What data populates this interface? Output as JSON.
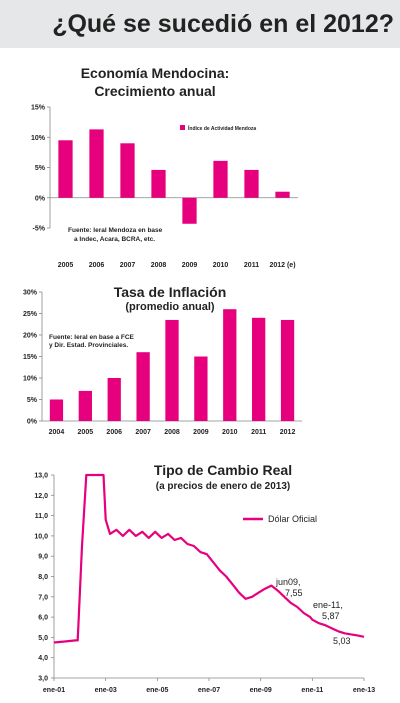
{
  "page": {
    "title": "¿Qué se sucedió en el 2012?",
    "accent": "#e6007e"
  },
  "chart_data": [
    {
      "type": "bar",
      "title": "Economía Mendocina:",
      "subtitle": "Crecimiento anual",
      "categories": [
        "2005",
        "2006",
        "2007",
        "2008",
        "2009",
        "2010",
        "2011",
        "2012 (e)"
      ],
      "series": [
        {
          "name": "Índice de Actividad Mendoza",
          "values": [
            9.5,
            11.3,
            9.0,
            4.6,
            -4.3,
            6.1,
            4.6,
            1.0
          ]
        }
      ],
      "ylim": [
        -5,
        15
      ],
      "y_ticks": [
        "15%",
        "10%",
        "5%",
        "0%",
        "-5%"
      ],
      "source_note": [
        "Fuente: Ieral Mendoza en base",
        "a Indec, Acara, BCRA, etc."
      ],
      "legend_position": "top-right",
      "grid": false
    },
    {
      "type": "bar",
      "title": "Tasa de Inflación",
      "subtitle": "(promedio anual)",
      "categories": [
        "2004",
        "2005",
        "2006",
        "2007",
        "2008",
        "2009",
        "2010",
        "2011",
        "2012"
      ],
      "series": [
        {
          "values": [
            5.0,
            7.0,
            10.0,
            16.0,
            23.5,
            15.0,
            26.0,
            24.0,
            23.5
          ]
        }
      ],
      "ylim": [
        0,
        30
      ],
      "y_ticks": [
        "30%",
        "25%",
        "20%",
        "15%",
        "10%",
        "5%",
        "0%"
      ],
      "source_note": [
        "Fuente: Ieral en base a FCE",
        "y Dir. Estad. Provinciales."
      ],
      "grid": false
    },
    {
      "type": "line",
      "title": "Tipo de Cambio Real",
      "subtitle": "(a precios de enero de 2013)",
      "x_ticks": [
        "ene-01",
        "ene-03",
        "ene-05",
        "ene-07",
        "ene-09",
        "ene-11",
        "ene-13"
      ],
      "y_ticks": [
        "13,0",
        "12,0",
        "11,0",
        "10,0",
        "9,0",
        "8,0",
        "7,0",
        "6,0",
        "5,0",
        "4,0",
        "3,0"
      ],
      "xlim": [
        "2001-01",
        "2013-01"
      ],
      "ylim": [
        3,
        13
      ],
      "legend_position": "top-right",
      "series": [
        {
          "name": "Dólar Oficial",
          "x": [
            "2001-01",
            "2001-06",
            "2001-11",
            "2001-12",
            "2002-02",
            "2002-04",
            "2002-06",
            "2002-09",
            "2002-12",
            "2003-01",
            "2003-03",
            "2003-06",
            "2003-09",
            "2003-12",
            "2004-03",
            "2004-06",
            "2004-09",
            "2004-12",
            "2005-03",
            "2005-06",
            "2005-09",
            "2005-12",
            "2006-03",
            "2006-06",
            "2006-09",
            "2006-12",
            "2007-03",
            "2007-06",
            "2007-09",
            "2007-12",
            "2008-03",
            "2008-06",
            "2008-09",
            "2008-12",
            "2009-03",
            "2009-06",
            "2009-09",
            "2009-12",
            "2010-03",
            "2010-06",
            "2010-09",
            "2010-12",
            "2011-01",
            "2011-04",
            "2011-07",
            "2011-10",
            "2012-01",
            "2012-04",
            "2012-07",
            "2012-10",
            "2013-01"
          ],
          "values": [
            4.75,
            4.8,
            4.85,
            4.85,
            9.5,
            13.0,
            13.0,
            13.0,
            13.0,
            10.8,
            10.1,
            10.3,
            10.0,
            10.3,
            10.0,
            10.2,
            9.9,
            10.2,
            9.9,
            10.1,
            9.8,
            9.9,
            9.6,
            9.5,
            9.2,
            9.1,
            8.7,
            8.3,
            8.0,
            7.6,
            7.2,
            6.9,
            7.0,
            7.2,
            7.4,
            7.55,
            7.3,
            7.0,
            6.7,
            6.5,
            6.2,
            6.0,
            5.87,
            5.7,
            5.6,
            5.45,
            5.3,
            5.2,
            5.15,
            5.1,
            5.03
          ]
        }
      ],
      "annotations": [
        {
          "text": "jun09,",
          "value": "7,55"
        },
        {
          "text": "ene-11,",
          "value": "5,87"
        },
        {
          "value": "5,03"
        }
      ],
      "grid": false
    }
  ]
}
